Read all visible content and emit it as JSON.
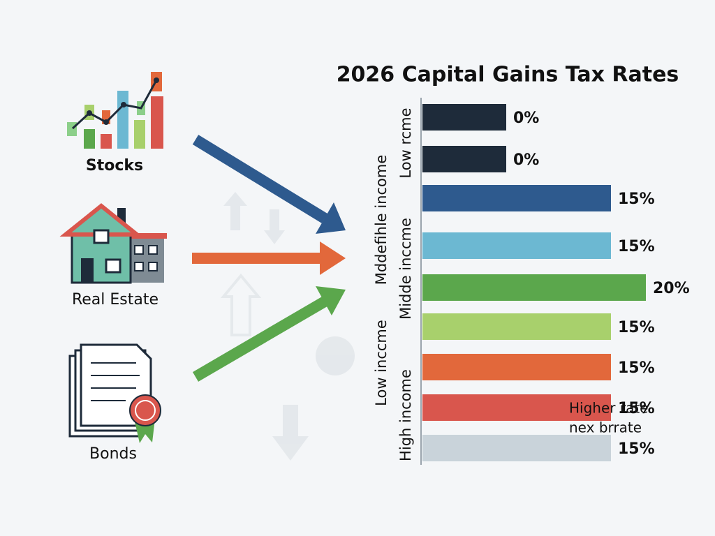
{
  "chart_data": {
    "type": "bar",
    "orientation": "horizontal",
    "title": "2026 Capital Gains Tax Rates",
    "values": [
      0,
      0,
      15,
      15,
      20,
      15,
      15,
      15,
      15
    ],
    "value_labels": [
      "0%",
      "0%",
      "15%",
      "15%",
      "20%",
      "15%",
      "15%",
      "15%",
      "15%"
    ],
    "colors": [
      "#1e2b3a",
      "#1e2b3a",
      "#2e5a8e",
      "#6cb8d2",
      "#5ba74c",
      "#a8d06c",
      "#e2683b",
      "#d9564d",
      "#c9d3da"
    ],
    "group_labels": [
      "Low rcme",
      "Mddefihle income",
      "Midde inccme",
      "Low inccme",
      "High income"
    ],
    "annotation": [
      "Higher rate",
      "nex brrate"
    ],
    "asset_labels": [
      "Stocks",
      "Real Estate",
      "Bonds"
    ]
  }
}
